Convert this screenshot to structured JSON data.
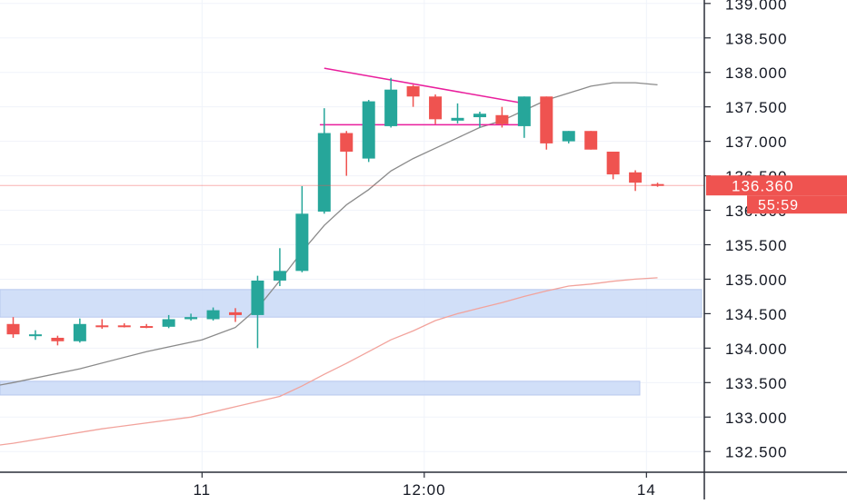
{
  "chart_data": {
    "type": "candlestick",
    "y_axis": {
      "ticks": [
        "132.500",
        "133.000",
        "133.500",
        "134.000",
        "134.500",
        "135.000",
        "135.500",
        "136.000",
        "136.500",
        "137.000",
        "137.500",
        "138.000",
        "138.500",
        "139.000"
      ],
      "ylim": [
        132.2,
        139.05
      ]
    },
    "x_axis": {
      "ticks": [
        {
          "label": "11",
          "index": 8.5
        },
        {
          "label": "12:00",
          "index": 18.5
        },
        {
          "label": "14",
          "index": 28.5
        }
      ]
    },
    "last_price": {
      "label": "136.360",
      "value": 136.36,
      "color": "#ef5350"
    },
    "countdown": {
      "label": "55:59"
    },
    "colors": {
      "up": "#26a69a",
      "down": "#ef5350",
      "ma_fast": "#8a8a8a",
      "ma_slow": "#f2a39c",
      "trend": "#e91e9c",
      "zone": "#c9d9f7",
      "grid": "#d7d7d7"
    },
    "candles": [
      {
        "o": 134.35,
        "h": 134.45,
        "l": 134.15,
        "c": 134.2
      },
      {
        "o": 134.2,
        "h": 134.26,
        "l": 134.12,
        "c": 134.2
      },
      {
        "o": 134.15,
        "h": 134.18,
        "l": 134.04,
        "c": 134.1
      },
      {
        "o": 134.1,
        "h": 134.43,
        "l": 134.08,
        "c": 134.35
      },
      {
        "o": 134.33,
        "h": 134.42,
        "l": 134.28,
        "c": 134.32
      },
      {
        "o": 134.33,
        "h": 134.36,
        "l": 134.3,
        "c": 134.32
      },
      {
        "o": 134.32,
        "h": 134.35,
        "l": 134.29,
        "c": 134.31
      },
      {
        "o": 134.31,
        "h": 134.48,
        "l": 134.29,
        "c": 134.42
      },
      {
        "o": 134.42,
        "h": 134.5,
        "l": 134.4,
        "c": 134.45
      },
      {
        "o": 134.42,
        "h": 134.59,
        "l": 134.4,
        "c": 134.55
      },
      {
        "o": 134.52,
        "h": 134.58,
        "l": 134.38,
        "c": 134.48
      },
      {
        "o": 134.48,
        "h": 135.05,
        "l": 134.0,
        "c": 134.98
      },
      {
        "o": 134.98,
        "h": 135.45,
        "l": 134.9,
        "c": 135.12
      },
      {
        "o": 135.12,
        "h": 136.35,
        "l": 135.1,
        "c": 135.95
      },
      {
        "o": 135.98,
        "h": 137.48,
        "l": 135.95,
        "c": 137.12
      },
      {
        "o": 137.12,
        "h": 137.15,
        "l": 136.5,
        "c": 136.85
      },
      {
        "o": 136.75,
        "h": 137.6,
        "l": 136.7,
        "c": 137.58
      },
      {
        "o": 137.22,
        "h": 137.92,
        "l": 137.2,
        "c": 137.75
      },
      {
        "o": 137.8,
        "h": 137.82,
        "l": 137.5,
        "c": 137.65
      },
      {
        "o": 137.65,
        "h": 137.68,
        "l": 137.25,
        "c": 137.32
      },
      {
        "o": 137.3,
        "h": 137.55,
        "l": 137.26,
        "c": 137.34
      },
      {
        "o": 137.35,
        "h": 137.43,
        "l": 137.2,
        "c": 137.4
      },
      {
        "o": 137.38,
        "h": 137.5,
        "l": 137.2,
        "c": 137.25
      },
      {
        "o": 137.22,
        "h": 137.65,
        "l": 137.05,
        "c": 137.65
      },
      {
        "o": 137.65,
        "h": 137.65,
        "l": 136.88,
        "c": 136.97
      },
      {
        "o": 137.0,
        "h": 137.15,
        "l": 136.97,
        "c": 137.15
      },
      {
        "o": 137.15,
        "h": 137.15,
        "l": 136.88,
        "c": 136.88
      },
      {
        "o": 136.85,
        "h": 136.85,
        "l": 136.45,
        "c": 136.52
      },
      {
        "o": 136.55,
        "h": 136.58,
        "l": 136.28,
        "c": 136.4
      },
      {
        "o": 136.38,
        "h": 136.4,
        "l": 136.34,
        "c": 136.36
      }
    ],
    "ma_fast": [
      {
        "i": -9.5,
        "v": 132.8
      },
      {
        "i": -6,
        "v": 133.1
      },
      {
        "i": -3,
        "v": 133.32
      },
      {
        "i": 0,
        "v": 133.5
      },
      {
        "i": 3,
        "v": 133.7
      },
      {
        "i": 6,
        "v": 133.95
      },
      {
        "i": 8.5,
        "v": 134.12
      },
      {
        "i": 10,
        "v": 134.3
      },
      {
        "i": 11,
        "v": 134.58
      },
      {
        "i": 12,
        "v": 134.98
      },
      {
        "i": 13,
        "v": 135.4
      },
      {
        "i": 14,
        "v": 135.78
      },
      {
        "i": 15,
        "v": 136.08
      },
      {
        "i": 16,
        "v": 136.3
      },
      {
        "i": 17,
        "v": 136.57
      },
      {
        "i": 18,
        "v": 136.75
      },
      {
        "i": 19,
        "v": 136.9
      },
      {
        "i": 20,
        "v": 137.05
      },
      {
        "i": 21,
        "v": 137.2
      },
      {
        "i": 22,
        "v": 137.3
      },
      {
        "i": 23,
        "v": 137.45
      },
      {
        "i": 24,
        "v": 137.6
      },
      {
        "i": 25,
        "v": 137.7
      },
      {
        "i": 26,
        "v": 137.8
      },
      {
        "i": 27,
        "v": 137.85
      },
      {
        "i": 28,
        "v": 137.85
      },
      {
        "i": 29,
        "v": 137.82
      }
    ],
    "ma_slow": [
      {
        "i": -8,
        "v": 132.2
      },
      {
        "i": -4,
        "v": 132.45
      },
      {
        "i": 0,
        "v": 132.62
      },
      {
        "i": 4,
        "v": 132.83
      },
      {
        "i": 8,
        "v": 133.0
      },
      {
        "i": 10,
        "v": 133.15
      },
      {
        "i": 12,
        "v": 133.3
      },
      {
        "i": 13,
        "v": 133.45
      },
      {
        "i": 14,
        "v": 133.62
      },
      {
        "i": 15,
        "v": 133.78
      },
      {
        "i": 16,
        "v": 133.95
      },
      {
        "i": 17,
        "v": 134.12
      },
      {
        "i": 18,
        "v": 134.25
      },
      {
        "i": 19,
        "v": 134.4
      },
      {
        "i": 20,
        "v": 134.5
      },
      {
        "i": 21,
        "v": 134.58
      },
      {
        "i": 22,
        "v": 134.66
      },
      {
        "i": 23,
        "v": 134.75
      },
      {
        "i": 24,
        "v": 134.83
      },
      {
        "i": 25,
        "v": 134.9
      },
      {
        "i": 26,
        "v": 134.93
      },
      {
        "i": 27,
        "v": 134.97
      },
      {
        "i": 28,
        "v": 135.0
      },
      {
        "i": 29,
        "v": 135.02
      }
    ],
    "trendlines": [
      {
        "i1": 14,
        "v1": 138.06,
        "i2": 23,
        "v2": 137.55
      },
      {
        "i1": 13.8,
        "v1": 137.24,
        "i2": 23,
        "v2": 137.24
      }
    ],
    "zones": [
      {
        "top": 134.85,
        "bottom": 134.45,
        "i_end": "axis"
      },
      {
        "top": 133.52,
        "bottom": 133.32,
        "i_end": 28.2
      }
    ]
  }
}
